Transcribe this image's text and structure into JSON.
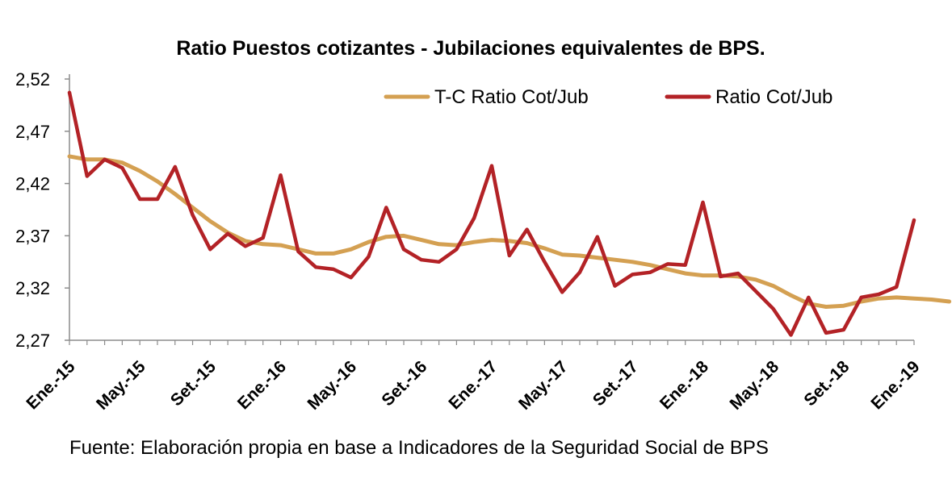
{
  "chart_data": {
    "type": "line",
    "title": "Ratio Puestos cotizantes - Jubilaciones equivalentes de BPS.",
    "source": "Fuente: Elaboración propia en base a Indicadores de la Seguridad Social de BPS",
    "ylim": [
      2.27,
      2.52
    ],
    "yticks": [
      "2,52",
      "2,47",
      "2,42",
      "2,37",
      "2,32",
      "2,27"
    ],
    "x_tick_labels": [
      "Ene.-15",
      "May.-15",
      "Set.-15",
      "Ene.-16",
      "May.-16",
      "Set.-16",
      "Ene.-17",
      "May.-17",
      "Set.-17",
      "Ene.-18",
      "May.-18",
      "Set.-18",
      "Ene.-19"
    ],
    "grid": false,
    "legend_position": "top-right",
    "series": [
      {
        "name": "T-C Ratio Cot/Jub",
        "color": "#d4a052",
        "values": [
          2.446,
          2.443,
          2.443,
          2.44,
          2.432,
          2.422,
          2.41,
          2.397,
          2.384,
          2.373,
          2.365,
          2.362,
          2.361,
          2.357,
          2.353,
          2.353,
          2.357,
          2.364,
          2.369,
          2.37,
          2.366,
          2.362,
          2.361,
          2.364,
          2.366,
          2.365,
          2.363,
          2.358,
          2.352,
          2.351,
          2.349,
          2.347,
          2.345,
          2.342,
          2.338,
          2.334,
          2.332,
          2.332,
          2.331,
          2.328,
          2.322,
          2.313,
          2.305,
          2.302,
          2.303,
          2.307,
          2.31,
          2.311,
          2.31,
          2.309,
          2.307
        ]
      },
      {
        "name": "Ratio Cot/Jub",
        "color": "#b32226",
        "values": [
          2.507,
          2.427,
          2.443,
          2.435,
          2.405,
          2.405,
          2.436,
          2.39,
          2.357,
          2.372,
          2.36,
          2.368,
          2.428,
          2.355,
          2.34,
          2.338,
          2.33,
          2.35,
          2.397,
          2.357,
          2.347,
          2.345,
          2.357,
          2.387,
          2.437,
          2.351,
          2.376,
          2.345,
          2.316,
          2.335,
          2.369,
          2.322,
          2.333,
          2.335,
          2.343,
          2.342,
          2.402,
          2.331,
          2.334,
          2.317,
          2.3,
          2.275,
          2.311,
          2.277,
          2.28,
          2.311,
          2.314,
          2.321,
          2.385
        ]
      }
    ]
  }
}
